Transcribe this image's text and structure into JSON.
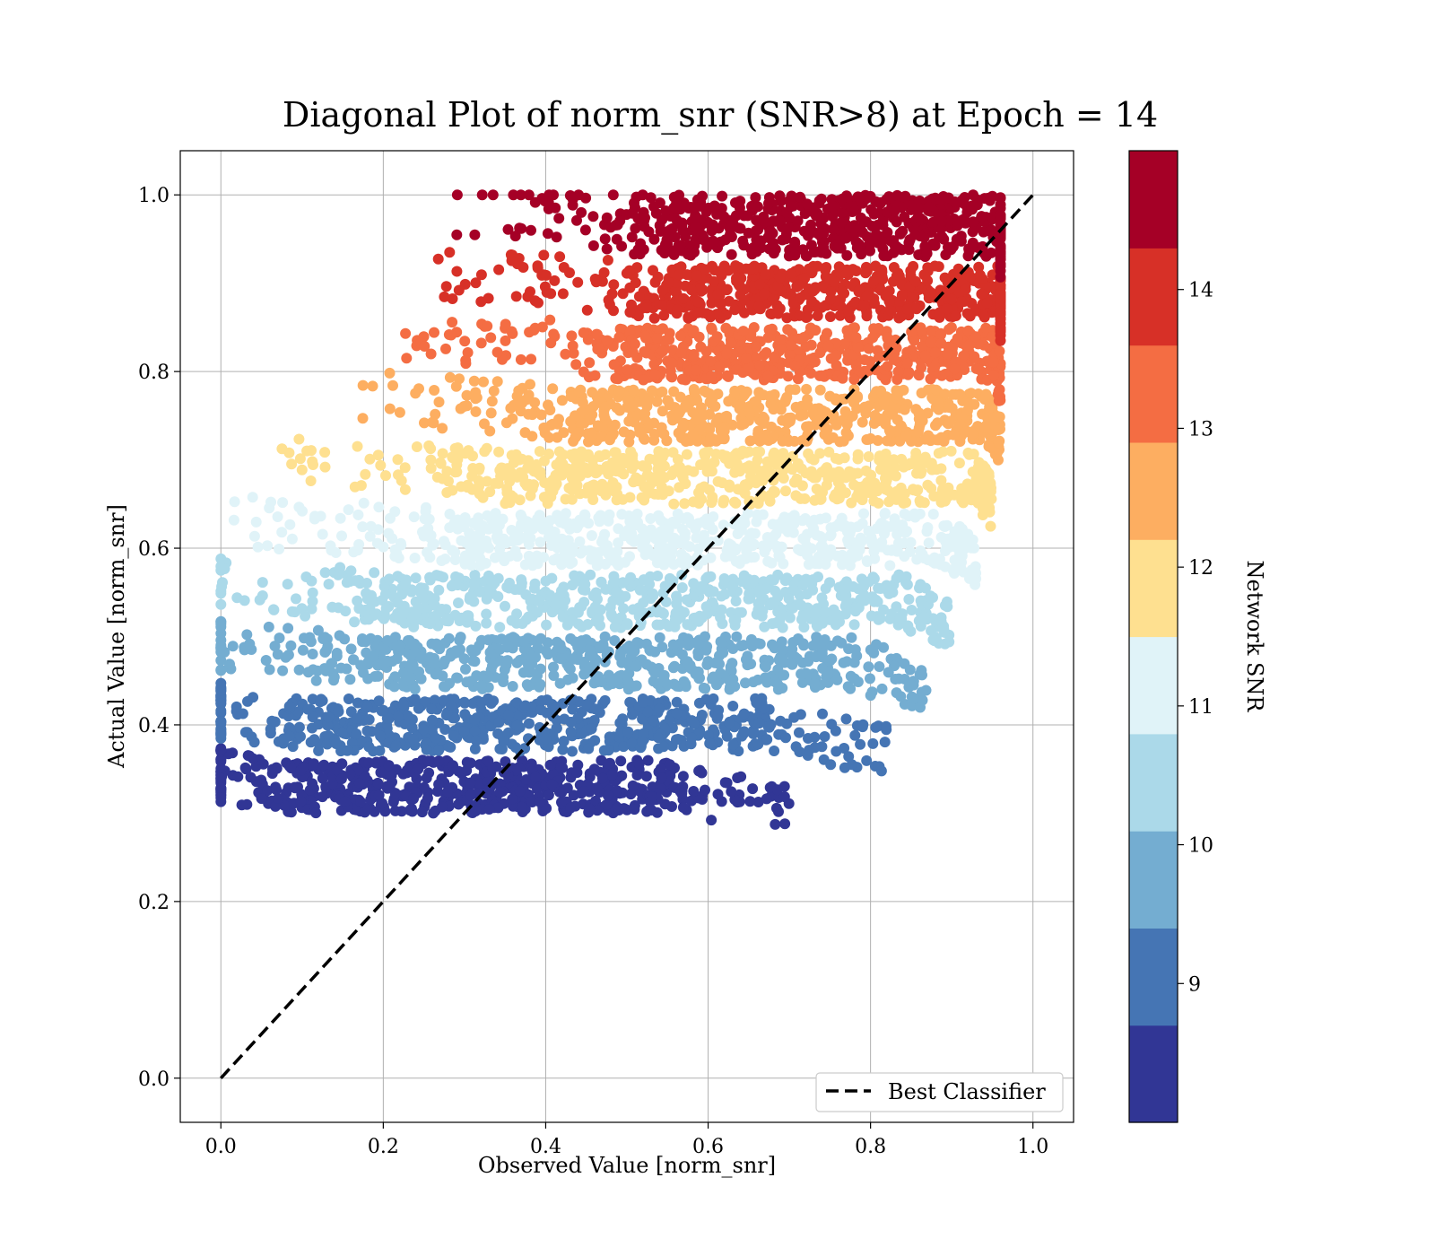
{
  "chart_data": {
    "type": "scatter",
    "title": "Diagonal Plot of norm_snr (SNR>8) at Epoch = 14",
    "xlabel": "Observed Value [norm_snr]",
    "ylabel": "Actual Value [norm_snr]",
    "xlim": [
      -0.05,
      1.05
    ],
    "ylim": [
      -0.05,
      1.05
    ],
    "x_ticks": [
      "0.0",
      "0.2",
      "0.4",
      "0.6",
      "0.8",
      "1.0"
    ],
    "y_ticks": [
      "0.0",
      "0.2",
      "0.4",
      "0.6",
      "0.8",
      "1.0"
    ],
    "x_tick_values": [
      0,
      0.2,
      0.4,
      0.6,
      0.8,
      1.0
    ],
    "y_tick_values": [
      0,
      0.2,
      0.4,
      0.6,
      0.8,
      1.0
    ],
    "grid": true,
    "colorbar": {
      "label": "Network SNR",
      "range": [
        8,
        15
      ],
      "tick_values": [
        9,
        10,
        11,
        12,
        13,
        14
      ],
      "tick_labels": [
        "9",
        "10",
        "11",
        "12",
        "13",
        "14"
      ],
      "colors": [
        "#313695",
        "#4575b4",
        "#74add1",
        "#abd9e9",
        "#e0f3f8",
        "#fee090",
        "#fdae61",
        "#f46d43",
        "#d73027",
        "#a50026"
      ]
    },
    "scatter_bands": [
      {
        "color": "#313695",
        "y_range": [
          0.3,
          0.36
        ],
        "x_core": [
          0.08,
          0.56
        ],
        "x_scatter_max": 0.7
      },
      {
        "color": "#4575b4",
        "y_range": [
          0.37,
          0.43
        ],
        "x_core": [
          0.11,
          0.68
        ],
        "x_scatter_max": 0.82
      },
      {
        "color": "#74add1",
        "y_range": [
          0.44,
          0.5
        ],
        "x_core": [
          0.17,
          0.78
        ],
        "x_scatter_max": 0.87
      },
      {
        "color": "#abd9e9",
        "y_range": [
          0.51,
          0.57
        ],
        "x_core": [
          0.21,
          0.84
        ],
        "x_scatter_max": 0.9
      },
      {
        "color": "#e0f3f8",
        "y_range": [
          0.58,
          0.64
        ],
        "x_core": [
          0.28,
          0.89
        ],
        "x_scatter_max": 0.93
      },
      {
        "color": "#fee090",
        "y_range": [
          0.65,
          0.71
        ],
        "x_core": [
          0.34,
          0.93
        ],
        "x_scatter_max": 0.95
      },
      {
        "color": "#fdae61",
        "y_range": [
          0.72,
          0.78
        ],
        "x_core": [
          0.43,
          0.94
        ],
        "x_scatter_max": 0.96
      },
      {
        "color": "#f46d43",
        "y_range": [
          0.79,
          0.85
        ],
        "x_core": [
          0.49,
          0.95
        ],
        "x_scatter_max": 0.96
      },
      {
        "color": "#d73027",
        "y_range": [
          0.86,
          0.92
        ],
        "x_core": [
          0.53,
          0.96
        ],
        "x_scatter_max": 0.96
      },
      {
        "color": "#a50026",
        "y_range": [
          0.93,
          1.0
        ],
        "x_core": [
          0.54,
          0.96
        ],
        "x_scatter_max": 0.96
      }
    ],
    "reference_line": {
      "name": "Best Classifier",
      "x": [
        0.0,
        1.0
      ],
      "y": [
        0.0,
        1.0
      ],
      "style": "dashed",
      "color": "#000000"
    },
    "legend": {
      "placement": "lower-right",
      "entries": [
        "Best Classifier"
      ]
    }
  }
}
